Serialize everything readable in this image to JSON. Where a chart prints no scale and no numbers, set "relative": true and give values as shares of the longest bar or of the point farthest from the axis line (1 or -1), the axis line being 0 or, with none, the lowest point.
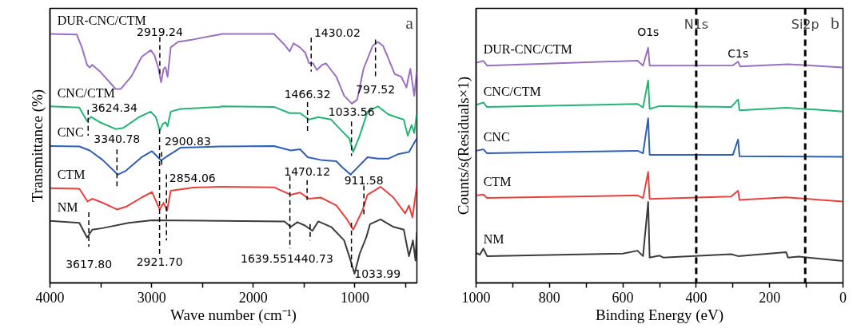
{
  "chart_data": [
    {
      "type": "line",
      "relative": true,
      "xlabel": "Wave number (cm⁻¹)",
      "ylabel": "Transmittance (%)",
      "grid": false,
      "xlim": [
        4000,
        390
      ],
      "xticks": [
        4000,
        {
          "value": 3500,
          "label": null
        },
        3000,
        {
          "value": 2500,
          "label": null
        },
        2000,
        {
          "value": 1500,
          "label": null
        },
        1000,
        {
          "value": 500,
          "label": null
        }
      ],
      "series": [
        {
          "name": "DUR-CNC/CTM",
          "color": "#9b6fc1",
          "x": [
            4000,
            3737,
            3686,
            3635,
            3609,
            3584,
            3507,
            3354,
            3303,
            3201,
            3098,
            3009,
            2971,
            2932,
            2907,
            2882,
            2863,
            2843,
            2812,
            2741,
            2588,
            2332,
            2306,
            1796,
            1693,
            1642,
            1604,
            1540,
            1489,
            1451,
            1413,
            1374,
            1323,
            1285,
            1234,
            1183,
            1106,
            1030,
            978,
            915,
            825,
            774,
            723,
            672,
            608,
            544,
            493,
            455,
            416,
            392
          ],
          "values": [
            1.0,
            0.998,
            0.946,
            0.876,
            0.865,
            0.876,
            0.849,
            0.779,
            0.779,
            0.828,
            0.908,
            0.935,
            0.914,
            0.86,
            0.806,
            0.86,
            0.866,
            0.828,
            0.946,
            0.968,
            0.978,
            0.998,
            1.0,
            1.0,
            0.957,
            0.93,
            0.962,
            0.946,
            0.925,
            0.882,
            0.882,
            0.855,
            0.876,
            0.882,
            0.855,
            0.828,
            0.752,
            0.72,
            0.736,
            0.86,
            0.952,
            0.968,
            0.952,
            0.903,
            0.839,
            0.828,
            0.785,
            0.86,
            0.752,
            0.849
          ]
        },
        {
          "name": "CNC/CTM",
          "color": "#22b573",
          "x": [
            4000,
            3711,
            3635,
            3596,
            3507,
            3354,
            3277,
            3124,
            3009,
            2958,
            2920,
            2889,
            2863,
            2843,
            2812,
            2715,
            2332,
            2306,
            1796,
            1642,
            1540,
            1451,
            1361,
            1234,
            1132,
            1055,
            1017,
            953,
            876,
            774,
            672,
            595,
            519,
            480,
            442,
            416,
            392
          ],
          "values": [
            0.709,
            0.704,
            0.65,
            0.667,
            0.645,
            0.618,
            0.623,
            0.666,
            0.688,
            0.666,
            0.612,
            0.639,
            0.645,
            0.629,
            0.688,
            0.699,
            0.707,
            0.709,
            0.707,
            0.682,
            0.682,
            0.656,
            0.666,
            0.656,
            0.612,
            0.58,
            0.526,
            0.591,
            0.688,
            0.709,
            0.677,
            0.666,
            0.656,
            0.591,
            0.634,
            0.602,
            0.677
          ]
        },
        {
          "name": "CNC",
          "color": "#2d5fb8",
          "x": [
            4000,
            3711,
            3609,
            3482,
            3333,
            3252,
            3098,
            2996,
            2907,
            2843,
            2715,
            2332,
            2306,
            1796,
            1630,
            1540,
            1464,
            1336,
            1183,
            1132,
            1042,
            978,
            876,
            774,
            672,
            570,
            468,
            392
          ],
          "values": [
            0.55,
            0.548,
            0.532,
            0.494,
            0.435,
            0.451,
            0.505,
            0.529,
            0.492,
            0.51,
            0.543,
            0.548,
            0.548,
            0.55,
            0.532,
            0.537,
            0.505,
            0.494,
            0.489,
            0.467,
            0.435,
            0.462,
            0.505,
            0.499,
            0.499,
            0.518,
            0.526,
            0.58
          ]
        },
        {
          "name": "CTM",
          "color": "#e8413c",
          "x": [
            4000,
            3711,
            3630,
            3584,
            3482,
            3341,
            3252,
            3098,
            2996,
            2920,
            2882,
            2848,
            2812,
            2588,
            2332,
            2306,
            1796,
            1630,
            1540,
            1451,
            1336,
            1183,
            1081,
            1017,
            927,
            876,
            748,
            621,
            506,
            468,
            434,
            392
          ],
          "values": [
            0.381,
            0.378,
            0.327,
            0.338,
            0.322,
            0.295,
            0.306,
            0.343,
            0.365,
            0.295,
            0.322,
            0.29,
            0.37,
            0.383,
            0.386,
            0.386,
            0.384,
            0.354,
            0.363,
            0.338,
            0.343,
            0.311,
            0.257,
            0.214,
            0.29,
            0.354,
            0.386,
            0.343,
            0.279,
            0.311,
            0.263,
            0.386
          ]
        },
        {
          "name": "NM",
          "color": "#3c3c3c",
          "x": [
            4000,
            3711,
            3635,
            3584,
            3482,
            3226,
            2996,
            2332,
            2306,
            1693,
            1630,
            1566,
            1489,
            1418,
            1361,
            1234,
            1106,
            1030,
            1004,
            953,
            889,
            851,
            748,
            621,
            519,
            468,
            429,
            404,
            392
          ],
          "values": [
            0.249,
            0.241,
            0.182,
            0.214,
            0.22,
            0.241,
            0.252,
            0.249,
            0.249,
            0.247,
            0.225,
            0.244,
            0.23,
            0.209,
            0.247,
            0.225,
            0.171,
            0.074,
            0.037,
            0.117,
            0.182,
            0.236,
            0.255,
            0.225,
            0.214,
            0.107,
            0.171,
            0.09,
            0.203
          ]
        }
      ],
      "annotations": [
        "a",
        {
          "text": "2919.24",
          "x": 2919.24,
          "y": 0.832
        },
        {
          "text": "1430.02",
          "x": 1430.02,
          "y": 0.882
        },
        {
          "text": "797.52",
          "x": 797.52,
          "y": 0.961
        },
        {
          "text": "3624.34",
          "x": 3624.34,
          "y": 0.655
        },
        {
          "text": "1466.32",
          "x": 1466.32,
          "y": 0.659
        },
        {
          "text": "1033.56",
          "x": 1033.56,
          "y": 0.548
        },
        {
          "text": "3340.78",
          "x": 3340.78,
          "y": 0.438
        },
        {
          "text": "2900.83",
          "x": 2900.83,
          "y": 0.494
        },
        {
          "text": "1470.12",
          "x": 1470.12,
          "y": 0.343
        },
        {
          "text": "911.58",
          "x": 911.58,
          "y": 0.31
        },
        {
          "text": "2854.06",
          "x": 2854.06,
          "y": 0.295
        },
        {
          "text": "3617.80",
          "x": 3617.8,
          "y": 0.193
        },
        {
          "text": "2921.70",
          "x": 2921.7,
          "y": 0.612
        },
        {
          "text": "1639.55",
          "x": 1639.55,
          "y": 0.228
        },
        {
          "text": "1440.73",
          "x": 1440.73,
          "y": 0.215
        },
        {
          "text": "1033.99",
          "x": 1033.99,
          "y": 0.079
        }
      ]
    },
    {
      "type": "line",
      "relative": true,
      "xlabel": "Binding Energy (eV)",
      "ylabel": "Counts/s(Residuals×1)",
      "grid": false,
      "xlim": [
        1000,
        0
      ],
      "xticks": [
        1000,
        {
          "value": 900,
          "label": null
        },
        800,
        {
          "value": 700,
          "label": null
        },
        600,
        {
          "value": 500,
          "label": null
        },
        400,
        {
          "value": 300,
          "label": null
        },
        200,
        {
          "value": 100,
          "label": null
        },
        0
      ],
      "series": [
        {
          "name": "DUR-CNC/CTM",
          "color": "#9b6fc1",
          "x": [
            1000,
            980,
            970,
            560,
            545,
            531,
            527,
            300,
            286,
            280,
            150,
            0
          ],
          "values": [
            0.936,
            0.944,
            0.924,
            0.945,
            0.924,
            1.0,
            0.924,
            0.925,
            0.941,
            0.92,
            0.93,
            0.916
          ]
        },
        {
          "name": "CNC/CTM",
          "color": "#22b573",
          "x": [
            1000,
            980,
            970,
            560,
            545,
            531,
            527,
            500,
            305,
            286,
            282,
            155,
            0
          ],
          "values": [
            0.757,
            0.767,
            0.748,
            0.761,
            0.746,
            0.861,
            0.74,
            0.752,
            0.748,
            0.78,
            0.734,
            0.745,
            0.729
          ]
        },
        {
          "name": "CNC",
          "color": "#2d5fb8",
          "x": [
            1000,
            980,
            970,
            560,
            545,
            531,
            527,
            300,
            286,
            282,
            0
          ],
          "values": [
            0.562,
            0.568,
            0.551,
            0.562,
            0.551,
            0.7,
            0.545,
            0.545,
            0.61,
            0.539,
            0.536
          ]
        },
        {
          "name": "CTM",
          "color": "#e8413c",
          "x": [
            1000,
            980,
            970,
            560,
            545,
            531,
            527,
            305,
            286,
            282,
            155,
            0
          ],
          "values": [
            0.372,
            0.376,
            0.361,
            0.372,
            0.361,
            0.472,
            0.357,
            0.367,
            0.392,
            0.353,
            0.364,
            0.346
          ]
        },
        {
          "name": "NM",
          "color": "#3c3c3c",
          "x": [
            1000,
            990,
            980,
            970,
            600,
            560,
            545,
            531,
            527,
            500,
            490,
            305,
            286,
            155,
            150,
            120,
            0
          ],
          "values": [
            0.128,
            0.12,
            0.146,
            0.114,
            0.125,
            0.137,
            0.114,
            0.344,
            0.108,
            0.116,
            0.108,
            0.122,
            0.114,
            0.131,
            0.108,
            0.112,
            0.093
          ]
        }
      ],
      "ref_lines": [
        {
          "axis": "x",
          "value": 400,
          "label": "N1s",
          "color": "#000000",
          "line_style": "dashed"
        },
        {
          "axis": "x",
          "value": 103,
          "label": "Si2p",
          "color": "#000000",
          "line_style": "dashed"
        }
      ],
      "annotations": [
        "b",
        {
          "text": "O1s",
          "x": 531,
          "y": 1.0
        },
        {
          "text": "C1s",
          "x": 286,
          "y": 0.941
        }
      ]
    }
  ]
}
